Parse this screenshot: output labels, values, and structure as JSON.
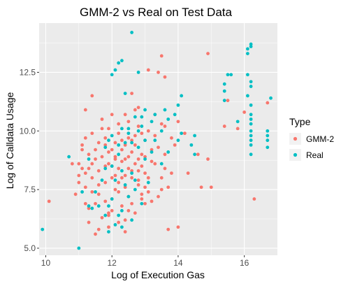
{
  "chart_data": {
    "type": "scatter",
    "title": "GMM-2 vs Real on Test Data",
    "xlabel": "Log of Execution Gas",
    "ylabel": "Log of Calldata Usage",
    "xlim": [
      9.8,
      17.0
    ],
    "ylim": [
      4.7,
      14.6
    ],
    "x_ticks": [
      "10",
      "12",
      "14",
      "16"
    ],
    "x_tick_values": [
      10,
      12,
      14,
      16
    ],
    "y_ticks": [
      "5.0",
      "7.5",
      "10.0",
      "12.5"
    ],
    "y_tick_values": [
      5.0,
      7.5,
      10.0,
      12.5
    ],
    "grid": true,
    "legend_placement": "right",
    "legend_title": "Type",
    "series": [
      {
        "name": "GMM-2",
        "color": "#F8766D",
        "points": [
          [
            10.1,
            7.0
          ],
          [
            11.9,
            6.5
          ],
          [
            12.5,
            8.4
          ],
          [
            12.8,
            8.3
          ],
          [
            12.4,
            8.8
          ],
          [
            13.1,
            8.0
          ],
          [
            11.4,
            8.0
          ],
          [
            12.0,
            9.2
          ],
          [
            13.5,
            7.5
          ],
          [
            12.3,
            8.7
          ],
          [
            11.8,
            7.8
          ],
          [
            12.6,
            9.1
          ],
          [
            13.0,
            8.9
          ],
          [
            12.2,
            7.4
          ],
          [
            11.6,
            9.5
          ],
          [
            12.9,
            7.1
          ],
          [
            12.7,
            9.8
          ],
          [
            11.2,
            7.6
          ],
          [
            12.1,
            8.1
          ],
          [
            13.3,
            8.6
          ],
          [
            11.5,
            6.9
          ],
          [
            12.4,
            9.4
          ],
          [
            12.8,
            7.7
          ],
          [
            11.9,
            8.6
          ],
          [
            13.6,
            9.0
          ],
          [
            12.5,
            7.2
          ],
          [
            11.1,
            8.4
          ],
          [
            12.2,
            9.9
          ],
          [
            13.2,
            7.0
          ],
          [
            11.7,
            8.9
          ],
          [
            12.6,
            8.0
          ],
          [
            12.0,
            7.1
          ],
          [
            13.4,
            9.3
          ],
          [
            11.3,
            9.0
          ],
          [
            12.9,
            8.5
          ],
          [
            12.3,
            6.8
          ],
          [
            11.8,
            9.7
          ],
          [
            13.8,
            8.2
          ],
          [
            12.1,
            8.8
          ],
          [
            11.6,
            7.3
          ],
          [
            12.7,
            6.5
          ],
          [
            13.0,
            9.6
          ],
          [
            11.4,
            8.6
          ],
          [
            12.4,
            7.6
          ],
          [
            12.8,
            10.2
          ],
          [
            11.0,
            7.8
          ],
          [
            13.1,
            7.4
          ],
          [
            12.2,
            8.4
          ],
          [
            11.9,
            10.1
          ],
          [
            12.5,
            9.7
          ],
          [
            11.7,
            6.3
          ],
          [
            13.5,
            8.0
          ],
          [
            12.3,
            9.2
          ],
          [
            12.6,
            6.9
          ],
          [
            11.2,
            8.2
          ],
          [
            13.7,
            7.6
          ],
          [
            12.0,
            8.0
          ],
          [
            12.9,
            9.0
          ],
          [
            11.5,
            9.2
          ],
          [
            12.4,
            8.1
          ],
          [
            13.2,
            8.7
          ],
          [
            11.8,
            7.0
          ],
          [
            12.1,
            9.5
          ],
          [
            12.7,
            8.6
          ],
          [
            11.3,
            6.7
          ],
          [
            13.9,
            9.4
          ],
          [
            12.5,
            10.4
          ],
          [
            11.6,
            8.3
          ],
          [
            12.2,
            7.8
          ],
          [
            13.0,
            7.6
          ],
          [
            11.9,
            9.1
          ],
          [
            12.8,
            8.8
          ],
          [
            11.1,
            9.4
          ],
          [
            12.4,
            6.2
          ],
          [
            13.3,
            9.8
          ],
          [
            12.6,
            8.3
          ],
          [
            11.4,
            7.4
          ],
          [
            12.0,
            6.6
          ],
          [
            13.6,
            8.4
          ],
          [
            12.3,
            8.0
          ],
          [
            11.7,
            10.5
          ],
          [
            12.9,
            7.3
          ],
          [
            11.2,
            9.7
          ],
          [
            12.5,
            8.9
          ],
          [
            13.1,
            10.0
          ],
          [
            11.8,
            8.5
          ],
          [
            12.2,
            6.1
          ],
          [
            13.4,
            7.2
          ],
          [
            12.7,
            9.4
          ],
          [
            11.5,
            8.8
          ],
          [
            12.1,
            7.5
          ],
          [
            13.8,
            9.7
          ],
          [
            11.0,
            8.6
          ],
          [
            12.6,
            9.6
          ],
          [
            11.9,
            6.4
          ],
          [
            12.8,
            7.9
          ],
          [
            13.2,
            9.2
          ],
          [
            11.3,
            8.4
          ],
          [
            12.4,
            10.7
          ],
          [
            12.0,
            8.5
          ],
          [
            11.6,
            7.7
          ],
          [
            13.0,
            8.2
          ],
          [
            12.3,
            9.6
          ],
          [
            11.4,
            9.9
          ],
          [
            12.9,
            9.9
          ],
          [
            12.5,
            6.6
          ],
          [
            13.5,
            10.3
          ],
          [
            11.8,
            9.4
          ],
          [
            12.1,
            8.9
          ],
          [
            11.2,
            6.9
          ],
          [
            10.8,
            8.6
          ],
          [
            11.0,
            8.1
          ],
          [
            10.9,
            7.3
          ],
          [
            11.3,
            6.1
          ],
          [
            11.5,
            5.6
          ],
          [
            11.6,
            5.8
          ],
          [
            12.4,
            5.7
          ],
          [
            11.9,
            5.9
          ],
          [
            13.7,
            5.8
          ],
          [
            14.0,
            5.9
          ],
          [
            13.0,
            6.9
          ],
          [
            14.7,
            7.6
          ],
          [
            14.9,
            8.8
          ],
          [
            14.6,
            9.0
          ],
          [
            14.2,
            9.9
          ],
          [
            15.0,
            7.6
          ],
          [
            14.3,
            8.2
          ],
          [
            13.6,
            10.2
          ],
          [
            14.0,
            10.4
          ],
          [
            15.5,
            11.3
          ],
          [
            15.8,
            10.1
          ],
          [
            16.0,
            10.8
          ],
          [
            16.3,
            7.1
          ],
          [
            16.7,
            11.2
          ],
          [
            15.4,
            10.2
          ],
          [
            13.4,
            12.5
          ],
          [
            13.6,
            12.3
          ],
          [
            13.5,
            13.2
          ],
          [
            14.9,
            13.3
          ],
          [
            13.1,
            12.6
          ],
          [
            11.4,
            11.5
          ],
          [
            11.2,
            10.9
          ],
          [
            12.6,
            11.6
          ],
          [
            12.0,
            10.7
          ],
          [
            12.7,
            10.9
          ],
          [
            11.7,
            10.1
          ],
          [
            11.1,
            9.2
          ],
          [
            12.2,
            10.3
          ],
          [
            12.8,
            11.0
          ],
          [
            13.3,
            10.7
          ]
        ]
      },
      {
        "name": "Real",
        "color": "#00BFC4",
        "points": [
          [
            9.9,
            5.8
          ],
          [
            11.0,
            5.0
          ],
          [
            10.7,
            8.9
          ],
          [
            11.3,
            6.8
          ],
          [
            11.8,
            6.4
          ],
          [
            11.9,
            5.7
          ],
          [
            12.1,
            6.0
          ],
          [
            12.2,
            6.4
          ],
          [
            12.6,
            6.2
          ],
          [
            12.3,
            6.6
          ],
          [
            12.6,
            8.2
          ],
          [
            12.7,
            7.5
          ],
          [
            12.4,
            9.5
          ],
          [
            12.5,
            9.9
          ],
          [
            12.8,
            9.3
          ],
          [
            12.9,
            10.2
          ],
          [
            12.2,
            9.0
          ],
          [
            12.7,
            10.6
          ],
          [
            12.9,
            10.6
          ],
          [
            12.3,
            10.1
          ],
          [
            12.0,
            12.4
          ],
          [
            12.1,
            12.6
          ],
          [
            12.2,
            12.9
          ],
          [
            12.3,
            13.0
          ],
          [
            12.6,
            14.2
          ],
          [
            12.4,
            11.6
          ],
          [
            12.8,
            12.5
          ],
          [
            13.0,
            10.9
          ],
          [
            13.2,
            10.4
          ],
          [
            13.5,
            10.0
          ],
          [
            13.7,
            10.5
          ],
          [
            13.9,
            10.7
          ],
          [
            14.1,
            9.9
          ],
          [
            14.5,
            9.8
          ],
          [
            14.5,
            9.0
          ],
          [
            14.4,
            9.4
          ],
          [
            14.0,
            9.6
          ],
          [
            13.7,
            9.1
          ],
          [
            13.3,
            9.6
          ],
          [
            13.5,
            8.6
          ],
          [
            15.4,
            12.0
          ],
          [
            15.4,
            11.7
          ],
          [
            15.4,
            11.3
          ],
          [
            15.5,
            12.4
          ],
          [
            15.6,
            12.4
          ],
          [
            15.8,
            10.4
          ],
          [
            16.1,
            13.5
          ],
          [
            16.1,
            13.3
          ],
          [
            16.2,
            13.6
          ],
          [
            16.2,
            13.7
          ],
          [
            16.1,
            12.4
          ],
          [
            16.2,
            12.1
          ],
          [
            16.2,
            11.9
          ],
          [
            16.1,
            11.5
          ],
          [
            16.2,
            11.1
          ],
          [
            16.2,
            10.7
          ],
          [
            16.2,
            10.5
          ],
          [
            16.2,
            10.3
          ],
          [
            16.2,
            10.0
          ],
          [
            16.2,
            9.8
          ],
          [
            16.2,
            9.6
          ],
          [
            16.2,
            9.4
          ],
          [
            16.2,
            9.0
          ],
          [
            16.7,
            10.0
          ],
          [
            16.7,
            9.8
          ],
          [
            16.7,
            9.6
          ],
          [
            16.7,
            9.3
          ],
          [
            16.8,
            11.4
          ],
          [
            14.1,
            11.5
          ],
          [
            14.0,
            11.1
          ],
          [
            12.0,
            8.5
          ],
          [
            11.8,
            9.3
          ],
          [
            12.3,
            8.3
          ],
          [
            11.9,
            9.6
          ],
          [
            12.5,
            7.2
          ],
          [
            12.0,
            7.1
          ],
          [
            11.8,
            8.4
          ],
          [
            11.5,
            7.4
          ],
          [
            12.7,
            7.9
          ],
          [
            13.0,
            8.8
          ],
          [
            11.6,
            6.8
          ],
          [
            11.7,
            7.9
          ],
          [
            12.1,
            7.9
          ],
          [
            12.4,
            7.7
          ],
          [
            12.9,
            6.9
          ],
          [
            13.1,
            7.8
          ],
          [
            12.3,
            5.9
          ],
          [
            11.9,
            6.8
          ],
          [
            12.6,
            9.5
          ],
          [
            13.0,
            9.6
          ],
          [
            13.2,
            9.1
          ],
          [
            11.4,
            6.7
          ],
          [
            12.0,
            9.8
          ],
          [
            12.5,
            10.1
          ],
          [
            12.8,
            10.0
          ],
          [
            12.2,
            9.4
          ],
          [
            13.3,
            10.7
          ],
          [
            13.6,
            10.9
          ],
          [
            11.1,
            7.4
          ],
          [
            11.3,
            8.8
          ]
        ]
      }
    ]
  }
}
